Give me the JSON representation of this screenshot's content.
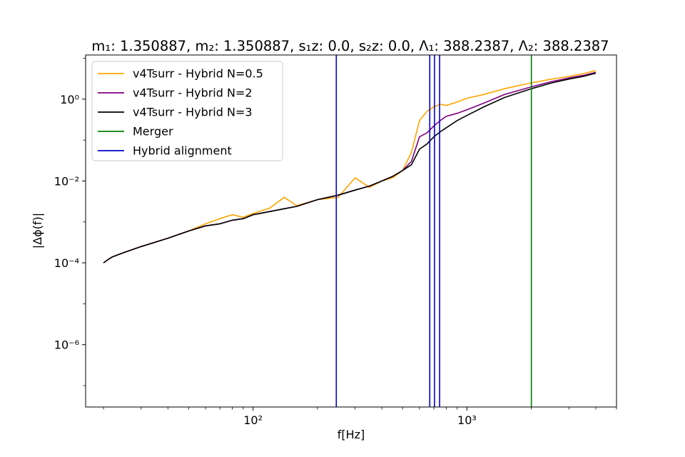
{
  "chart_data": {
    "type": "line",
    "title": "m₁: 1.350887, m₂: 1.350887, s₁z: 0.0, s₂z: 0.0, Λ₁: 388.2387, Λ₂: 388.2387",
    "xlabel": "f[Hz]",
    "ylabel": "|Δϕ(f)|",
    "xscale": "log",
    "yscale": "log",
    "xlim": [
      16.5,
      5000
    ],
    "ylim": [
      3e-08,
      12
    ],
    "x_ticks": [
      {
        "value": 100,
        "label": "10²"
      },
      {
        "value": 1000,
        "label": "10³"
      }
    ],
    "y_ticks": [
      {
        "value": 1e-06,
        "label": "10⁻⁶"
      },
      {
        "value": 0.0001,
        "label": "10⁻⁴"
      },
      {
        "value": 0.01,
        "label": "10⁻²"
      },
      {
        "value": 1,
        "label": "10⁰"
      }
    ],
    "grid": false,
    "legend_position": "upper-left",
    "series": [
      {
        "name": "v4Tsurr - Hybrid N=0.5",
        "color": "#ffa500",
        "x": [
          20,
          21,
          22,
          25,
          30,
          40,
          50,
          60,
          70,
          80,
          90,
          100,
          120,
          140,
          160,
          200,
          250,
          300,
          350,
          400,
          450,
          500,
          550,
          600,
          650,
          700,
          750,
          800,
          900,
          1000,
          1200,
          1500,
          2000,
          2500,
          3000,
          3500,
          4000
        ],
        "y": [
          0.0001,
          0.00012,
          0.00014,
          0.00018,
          0.00025,
          0.0004,
          0.0006,
          0.0009,
          0.0012,
          0.0015,
          0.0013,
          0.0016,
          0.0022,
          0.004,
          0.0025,
          0.0035,
          0.004,
          0.012,
          0.007,
          0.01,
          0.012,
          0.018,
          0.05,
          0.3,
          0.5,
          0.65,
          0.75,
          0.7,
          0.85,
          1.05,
          1.3,
          1.8,
          2.5,
          3.1,
          3.6,
          4.2,
          5.0
        ]
      },
      {
        "name": "v4Tsurr - Hybrid N=2",
        "color": "#800080",
        "x": [
          20,
          21,
          22,
          25,
          30,
          40,
          50,
          60,
          70,
          80,
          90,
          100,
          120,
          140,
          160,
          200,
          250,
          300,
          350,
          400,
          450,
          500,
          550,
          600,
          650,
          700,
          750,
          800,
          900,
          1000,
          1200,
          1500,
          2000,
          2500,
          3000,
          3500,
          4000
        ],
        "y": [
          0.0001,
          0.00012,
          0.00014,
          0.00018,
          0.00025,
          0.0004,
          0.0006,
          0.0008,
          0.0009,
          0.0011,
          0.0012,
          0.0015,
          0.0018,
          0.0021,
          0.0024,
          0.0035,
          0.0045,
          0.006,
          0.0075,
          0.01,
          0.013,
          0.018,
          0.03,
          0.12,
          0.15,
          0.22,
          0.3,
          0.38,
          0.45,
          0.55,
          0.8,
          1.3,
          2.0,
          2.7,
          3.3,
          3.8,
          4.5
        ]
      },
      {
        "name": "v4Tsurr - Hybrid N=3",
        "color": "#000000",
        "x": [
          20,
          21,
          22,
          25,
          30,
          40,
          50,
          60,
          70,
          80,
          90,
          100,
          120,
          140,
          160,
          200,
          250,
          300,
          350,
          400,
          450,
          500,
          550,
          600,
          650,
          700,
          750,
          800,
          900,
          1000,
          1200,
          1500,
          2000,
          2500,
          3000,
          3500,
          4000
        ],
        "y": [
          0.0001,
          0.00012,
          0.00014,
          0.00018,
          0.00025,
          0.0004,
          0.0006,
          0.0008,
          0.0009,
          0.0011,
          0.0012,
          0.0015,
          0.0018,
          0.0021,
          0.0024,
          0.0035,
          0.0045,
          0.006,
          0.0075,
          0.01,
          0.013,
          0.018,
          0.025,
          0.06,
          0.08,
          0.12,
          0.16,
          0.2,
          0.3,
          0.4,
          0.65,
          1.1,
          1.8,
          2.5,
          3.1,
          3.6,
          4.3
        ]
      }
    ],
    "vertical_lines": [
      {
        "name": "Merger",
        "color": "#008000",
        "x": [
          2000
        ]
      },
      {
        "name": "Hybrid alignment",
        "color": "#0000cd",
        "x": [
          245,
          670,
          705,
          745
        ]
      }
    ],
    "annotations": []
  }
}
